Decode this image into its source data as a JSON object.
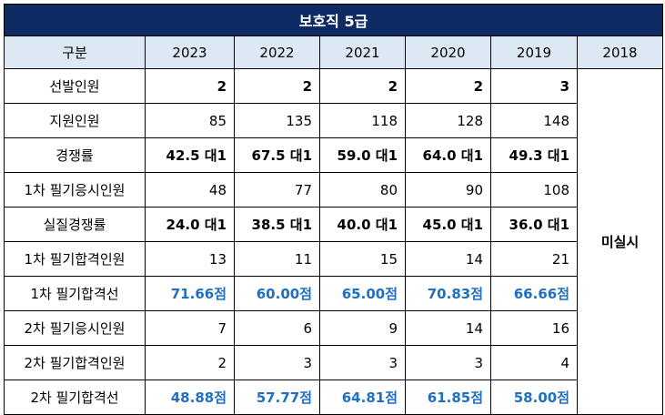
{
  "title": "보호직 5급",
  "header": {
    "category": "구분",
    "years": [
      "2023",
      "2022",
      "2021",
      "2020",
      "2019",
      "2018"
    ]
  },
  "rows": [
    {
      "label": "선발인원",
      "values": [
        "2",
        "2",
        "2",
        "2",
        "3"
      ],
      "style": "bold"
    },
    {
      "label": "지원인원",
      "values": [
        "85",
        "135",
        "118",
        "128",
        "148"
      ],
      "style": "normal"
    },
    {
      "label": "경쟁률",
      "values": [
        "42.5 대1",
        "67.5 대1",
        "59.0 대1",
        "64.0 대1",
        "49.3 대1"
      ],
      "style": "bold"
    },
    {
      "label": "1차 필기응시인원",
      "values": [
        "48",
        "77",
        "80",
        "90",
        "108"
      ],
      "style": "normal"
    },
    {
      "label": "실질경쟁률",
      "values": [
        "24.0 대1",
        "38.5 대1",
        "40.0 대1",
        "45.0 대1",
        "36.0 대1"
      ],
      "style": "bold"
    },
    {
      "label": "1차 필기합격인원",
      "values": [
        "13",
        "11",
        "15",
        "14",
        "21"
      ],
      "style": "normal"
    },
    {
      "label": "1차 필기합격선",
      "values": [
        "71.66점",
        "60.00점",
        "65.00점",
        "70.83점",
        "66.66점"
      ],
      "style": "blue"
    },
    {
      "label": "2차 필기응시인원",
      "values": [
        "7",
        "6",
        "9",
        "14",
        "16"
      ],
      "style": "normal"
    },
    {
      "label": "2차 필기합격인원",
      "values": [
        "2",
        "3",
        "3",
        "3",
        "4"
      ],
      "style": "normal"
    },
    {
      "label": "2차 필기합격선",
      "values": [
        "48.88점",
        "57.77점",
        "64.81점",
        "61.85점",
        "58.00점"
      ],
      "style": "blue"
    }
  ],
  "merged_2018": "미실시",
  "colors": {
    "title_bg": "#0e2b63",
    "header_bg": "#dde8f5",
    "score_text": "#1f6fc2"
  }
}
